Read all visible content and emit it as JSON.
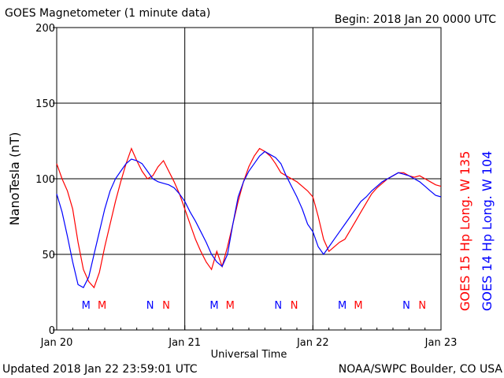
{
  "header": {
    "title": "GOES Magnetometer (1 minute data)",
    "begin": "Begin:  2018 Jan 20 0000 UTC"
  },
  "footer": {
    "updated": "Updated 2018 Jan 22 23:59:01 UTC",
    "credit": "NOAA/SWPC Boulder, CO USA"
  },
  "colors": {
    "goes15": "#ff0000",
    "goes14": "#0000ff",
    "axis": "#000000"
  },
  "chart_data": {
    "type": "line",
    "title": "GOES Magnetometer (1 minute data)",
    "xlabel": "Universal Time",
    "ylabel": "NanoTesla (nT)",
    "xlim": [
      0,
      72
    ],
    "x_unit": "hours since 2018 Jan 20 0000 UTC",
    "ylim": [
      0,
      200
    ],
    "yticks": [
      0,
      50,
      100,
      150,
      200
    ],
    "xticks": [
      {
        "x": 0,
        "label": "Jan 20"
      },
      {
        "x": 24,
        "label": "Jan 21"
      },
      {
        "x": 48,
        "label": "Jan 22"
      },
      {
        "x": 72,
        "label": "Jan 23"
      }
    ],
    "grid": true,
    "legend_position": "right (rotated vertical)",
    "series": [
      {
        "name": "GOES 15 Hp  Long. W 135",
        "color": "#ff0000",
        "x": [
          0,
          1,
          2,
          3,
          4,
          5,
          6,
          7,
          8,
          9,
          10,
          11,
          12,
          13,
          14,
          15,
          16,
          17,
          18,
          19,
          20,
          21,
          22,
          23,
          24,
          25,
          26,
          27,
          28,
          29,
          30,
          31,
          32,
          33,
          34,
          35,
          36,
          37,
          38,
          39,
          40,
          41,
          42,
          43,
          44,
          45,
          46,
          47,
          48,
          49,
          50,
          51,
          52,
          53,
          54,
          55,
          56,
          57,
          58,
          59,
          60,
          61,
          62,
          63,
          64,
          65,
          66,
          67,
          68,
          69,
          70,
          71,
          72
        ],
        "y": [
          110,
          100,
          92,
          80,
          58,
          40,
          32,
          28,
          38,
          55,
          70,
          85,
          98,
          110,
          120,
          112,
          105,
          100,
          102,
          108,
          112,
          105,
          98,
          90,
          80,
          70,
          60,
          52,
          45,
          40,
          52,
          42,
          55,
          70,
          85,
          98,
          108,
          115,
          120,
          118,
          115,
          110,
          104,
          102,
          100,
          98,
          95,
          92,
          88,
          75,
          60,
          52,
          55,
          58,
          60,
          66,
          72,
          78,
          84,
          90,
          94,
          97,
          100,
          102,
          104,
          104,
          102,
          101,
          102,
          100,
          98,
          96,
          95
        ]
      },
      {
        "name": "GOES 14 Hp  Long. W 104",
        "color": "#0000ff",
        "x": [
          0,
          1,
          2,
          3,
          4,
          5,
          6,
          7,
          8,
          9,
          10,
          11,
          12,
          13,
          14,
          15,
          16,
          17,
          18,
          19,
          20,
          21,
          22,
          23,
          24,
          25,
          26,
          27,
          28,
          29,
          30,
          31,
          32,
          33,
          34,
          35,
          36,
          37,
          38,
          39,
          40,
          41,
          42,
          43,
          44,
          45,
          46,
          47,
          48,
          49,
          50,
          51,
          52,
          53,
          54,
          55,
          56,
          57,
          58,
          59,
          60,
          61,
          62,
          63,
          64,
          65,
          66,
          67,
          68,
          69,
          70,
          71,
          72
        ],
        "y": [
          90,
          78,
          62,
          45,
          30,
          28,
          35,
          50,
          65,
          80,
          92,
          100,
          105,
          110,
          113,
          112,
          110,
          105,
          100,
          98,
          97,
          96,
          94,
          90,
          85,
          78,
          72,
          65,
          58,
          50,
          45,
          42,
          50,
          70,
          88,
          98,
          105,
          110,
          115,
          118,
          116,
          114,
          110,
          102,
          95,
          88,
          80,
          70,
          65,
          55,
          50,
          55,
          60,
          65,
          70,
          75,
          80,
          85,
          88,
          92,
          95,
          98,
          100,
          102,
          104,
          103,
          102,
          100,
          98,
          95,
          92,
          89,
          88
        ]
      }
    ],
    "annotations": [
      {
        "x": 5.5,
        "text": "M",
        "color": "#0000ff"
      },
      {
        "x": 8.5,
        "text": "M",
        "color": "#ff0000"
      },
      {
        "x": 17.5,
        "text": "N",
        "color": "#0000ff"
      },
      {
        "x": 20.5,
        "text": "N",
        "color": "#ff0000"
      },
      {
        "x": 29.5,
        "text": "M",
        "color": "#0000ff"
      },
      {
        "x": 32.5,
        "text": "M",
        "color": "#ff0000"
      },
      {
        "x": 41.5,
        "text": "N",
        "color": "#0000ff"
      },
      {
        "x": 44.5,
        "text": "N",
        "color": "#ff0000"
      },
      {
        "x": 53.5,
        "text": "M",
        "color": "#0000ff"
      },
      {
        "x": 56.5,
        "text": "M",
        "color": "#ff0000"
      },
      {
        "x": 65.5,
        "text": "N",
        "color": "#0000ff"
      },
      {
        "x": 68.5,
        "text": "N",
        "color": "#ff0000"
      }
    ]
  }
}
